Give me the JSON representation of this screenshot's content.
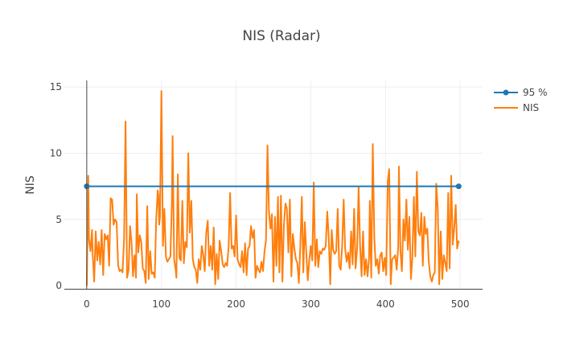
{
  "chart_data": {
    "type": "line",
    "title": "NIS (Radar)",
    "xlabel": "",
    "ylabel": "NIS",
    "xlim": [
      -30,
      530
    ],
    "ylim": [
      -0.3,
      15.5
    ],
    "xticks": [
      0,
      100,
      200,
      300,
      400,
      500
    ],
    "yticks": [
      0,
      5,
      10,
      15
    ],
    "grid": true,
    "legend_position": "top-right",
    "series": [
      {
        "name": "95 %",
        "color": "#1f77b4",
        "mode": "lines+markers",
        "x": [
          0,
          498
        ],
        "y": [
          7.5,
          7.5
        ]
      },
      {
        "name": "NIS",
        "color": "#ff7f0e",
        "mode": "lines",
        "points": [
          [
            0,
            0.0
          ],
          [
            2,
            8.3
          ],
          [
            3,
            3.5
          ],
          [
            5,
            2.6
          ],
          [
            7,
            4.2
          ],
          [
            8,
            2.3
          ],
          [
            10,
            0.3
          ],
          [
            12,
            4.1
          ],
          [
            14,
            1.9
          ],
          [
            16,
            3.3
          ],
          [
            18,
            1.6
          ],
          [
            20,
            4.2
          ],
          [
            22,
            0.8
          ],
          [
            24,
            3.9
          ],
          [
            26,
            3.5
          ],
          [
            28,
            3.8
          ],
          [
            30,
            1.5
          ],
          [
            32,
            6.6
          ],
          [
            34,
            6.5
          ],
          [
            36,
            4.6
          ],
          [
            38,
            5.0
          ],
          [
            40,
            4.8
          ],
          [
            42,
            1.5
          ],
          [
            44,
            1.1
          ],
          [
            46,
            1.2
          ],
          [
            48,
            1.0
          ],
          [
            50,
            3.6
          ],
          [
            52,
            12.4
          ],
          [
            54,
            0.6
          ],
          [
            56,
            1.2
          ],
          [
            58,
            4.5
          ],
          [
            60,
            3.2
          ],
          [
            62,
            0.7
          ],
          [
            64,
            2.3
          ],
          [
            66,
            0.6
          ],
          [
            67,
            6.9
          ],
          [
            69,
            2.5
          ],
          [
            71,
            3.8
          ],
          [
            73,
            3.3
          ],
          [
            75,
            1.3
          ],
          [
            77,
            1.1
          ],
          [
            79,
            0.2
          ],
          [
            81,
            6.0
          ],
          [
            83,
            0.5
          ],
          [
            85,
            2.6
          ],
          [
            87,
            0.9
          ],
          [
            89,
            1.0
          ],
          [
            91,
            0.6
          ],
          [
            93,
            5.0
          ],
          [
            95,
            7.2
          ],
          [
            96,
            6.8
          ],
          [
            97,
            4.6
          ],
          [
            98,
            5.2
          ],
          [
            100,
            14.7
          ],
          [
            102,
            3.0
          ],
          [
            104,
            5.8
          ],
          [
            106,
            2.2
          ],
          [
            108,
            1.8
          ],
          [
            110,
            2.0
          ],
          [
            112,
            2.2
          ],
          [
            114,
            6.3
          ],
          [
            115,
            11.3
          ],
          [
            117,
            2.0
          ],
          [
            119,
            1.2
          ],
          [
            120,
            0.6
          ],
          [
            122,
            8.4
          ],
          [
            124,
            2.1
          ],
          [
            126,
            1.9
          ],
          [
            128,
            6.4
          ],
          [
            130,
            1.7
          ],
          [
            132,
            3.3
          ],
          [
            134,
            2.9
          ],
          [
            136,
            10.0
          ],
          [
            138,
            4.0
          ],
          [
            140,
            6.4
          ],
          [
            142,
            2.0
          ],
          [
            144,
            1.4
          ],
          [
            146,
            1.2
          ],
          [
            148,
            0.2
          ],
          [
            150,
            2.0
          ],
          [
            152,
            1.2
          ],
          [
            154,
            3.0
          ],
          [
            156,
            2.3
          ],
          [
            158,
            1.1
          ],
          [
            160,
            4.0
          ],
          [
            162,
            4.9
          ],
          [
            164,
            1.5
          ],
          [
            166,
            3.0
          ],
          [
            168,
            1.2
          ],
          [
            170,
            4.4
          ],
          [
            172,
            0.1
          ],
          [
            174,
            2.4
          ],
          [
            176,
            0.5
          ],
          [
            178,
            3.4
          ],
          [
            180,
            2.6
          ],
          [
            182,
            1.6
          ],
          [
            184,
            1.4
          ],
          [
            186,
            1.7
          ],
          [
            188,
            1.5
          ],
          [
            190,
            3.0
          ],
          [
            192,
            7.0
          ],
          [
            194,
            2.8
          ],
          [
            196,
            3.0
          ],
          [
            198,
            2.2
          ],
          [
            200,
            5.3
          ],
          [
            202,
            2.0
          ],
          [
            204,
            1.6
          ],
          [
            206,
            1.4
          ],
          [
            208,
            2.6
          ],
          [
            210,
            1.0
          ],
          [
            212,
            3.2
          ],
          [
            214,
            0.8
          ],
          [
            216,
            2.8
          ],
          [
            218,
            3.0
          ],
          [
            220,
            4.5
          ],
          [
            222,
            3.6
          ],
          [
            224,
            4.2
          ],
          [
            226,
            0.6
          ],
          [
            228,
            1.5
          ],
          [
            230,
            1.2
          ],
          [
            232,
            1.0
          ],
          [
            234,
            1.8
          ],
          [
            236,
            1.1
          ],
          [
            238,
            2.6
          ],
          [
            240,
            3.4
          ],
          [
            242,
            10.6
          ],
          [
            244,
            5.6
          ],
          [
            246,
            4.3
          ],
          [
            248,
            5.4
          ],
          [
            250,
            0.3
          ],
          [
            252,
            5.2
          ],
          [
            254,
            1.5
          ],
          [
            256,
            6.7
          ],
          [
            258,
            1.0
          ],
          [
            260,
            6.8
          ],
          [
            262,
            0.3
          ],
          [
            264,
            4.6
          ],
          [
            266,
            6.2
          ],
          [
            268,
            5.8
          ],
          [
            270,
            2.5
          ],
          [
            272,
            6.5
          ],
          [
            274,
            0.7
          ],
          [
            276,
            3.9
          ],
          [
            278,
            2.8
          ],
          [
            280,
            2.0
          ],
          [
            282,
            1.7
          ],
          [
            284,
            0.2
          ],
          [
            286,
            3.0
          ],
          [
            288,
            6.7
          ],
          [
            290,
            1.0
          ],
          [
            292,
            4.8
          ],
          [
            294,
            2.4
          ],
          [
            296,
            0.4
          ],
          [
            298,
            2.0
          ],
          [
            300,
            3.0
          ],
          [
            302,
            1.9
          ],
          [
            304,
            7.8
          ],
          [
            306,
            1.5
          ],
          [
            308,
            3.5
          ],
          [
            310,
            1.4
          ],
          [
            312,
            2.6
          ],
          [
            314,
            2.4
          ],
          [
            316,
            2.8
          ],
          [
            318,
            2.7
          ],
          [
            320,
            3.0
          ],
          [
            322,
            5.6
          ],
          [
            324,
            3.7
          ],
          [
            326,
            0.1
          ],
          [
            328,
            4.2
          ],
          [
            330,
            2.7
          ],
          [
            332,
            2.4
          ],
          [
            334,
            2.6
          ],
          [
            336,
            5.8
          ],
          [
            338,
            1.5
          ],
          [
            340,
            1.2
          ],
          [
            342,
            3.0
          ],
          [
            344,
            6.5
          ],
          [
            346,
            2.8
          ],
          [
            348,
            1.8
          ],
          [
            350,
            2.5
          ],
          [
            352,
            1.3
          ],
          [
            354,
            4.1
          ],
          [
            356,
            1.6
          ],
          [
            358,
            5.8
          ],
          [
            360,
            1.3
          ],
          [
            362,
            2.8
          ],
          [
            364,
            7.4
          ],
          [
            366,
            3.0
          ],
          [
            368,
            0.7
          ],
          [
            370,
            4.1
          ],
          [
            372,
            0.8
          ],
          [
            374,
            2.0
          ],
          [
            376,
            0.7
          ],
          [
            378,
            2.1
          ],
          [
            379,
            6.4
          ],
          [
            381,
            0.6
          ],
          [
            383,
            10.7
          ],
          [
            385,
            3.6
          ],
          [
            387,
            1.5
          ],
          [
            389,
            2.0
          ],
          [
            391,
            0.9
          ],
          [
            393,
            2.3
          ],
          [
            395,
            2.5
          ],
          [
            397,
            1.1
          ],
          [
            399,
            2.1
          ],
          [
            401,
            0.8
          ],
          [
            403,
            7.9
          ],
          [
            405,
            8.8
          ],
          [
            407,
            0.1
          ],
          [
            409,
            2.0
          ],
          [
            411,
            2.1
          ],
          [
            413,
            2.3
          ],
          [
            415,
            1.2
          ],
          [
            417,
            2.9
          ],
          [
            418,
            9.0
          ],
          [
            420,
            2.6
          ],
          [
            422,
            1.1
          ],
          [
            424,
            5.0
          ],
          [
            426,
            3.4
          ],
          [
            428,
            6.5
          ],
          [
            430,
            2.7
          ],
          [
            432,
            5.2
          ],
          [
            434,
            0.5
          ],
          [
            436,
            2.1
          ],
          [
            438,
            6.7
          ],
          [
            440,
            2.2
          ],
          [
            442,
            8.6
          ],
          [
            444,
            4.1
          ],
          [
            446,
            3.8
          ],
          [
            448,
            5.5
          ],
          [
            450,
            1.5
          ],
          [
            452,
            5.2
          ],
          [
            454,
            3.9
          ],
          [
            456,
            4.3
          ],
          [
            458,
            1.8
          ],
          [
            460,
            0.7
          ],
          [
            462,
            0.3
          ],
          [
            464,
            0.8
          ],
          [
            466,
            1.0
          ],
          [
            468,
            7.7
          ],
          [
            470,
            5.8
          ],
          [
            472,
            0.1
          ],
          [
            474,
            4.1
          ],
          [
            476,
            0.5
          ],
          [
            478,
            2.3
          ],
          [
            480,
            1.7
          ],
          [
            482,
            1.1
          ],
          [
            484,
            7.0
          ],
          [
            486,
            1.3
          ],
          [
            488,
            8.3
          ],
          [
            490,
            3.1
          ],
          [
            492,
            4.3
          ],
          [
            494,
            6.1
          ],
          [
            496,
            2.8
          ],
          [
            498,
            3.4
          ]
        ]
      }
    ]
  }
}
